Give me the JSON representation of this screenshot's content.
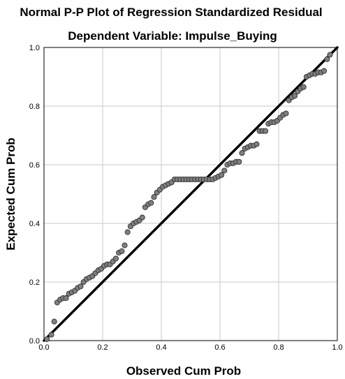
{
  "chart_data": {
    "type": "scatter",
    "title": "Normal P-P Plot of Regression Standardized Residual",
    "subtitle": "Dependent Variable: Impulse_Buying",
    "xlabel": "Observed Cum Prob",
    "ylabel": "Expected Cum Prob",
    "xlim": [
      0,
      1
    ],
    "ylim": [
      0,
      1
    ],
    "xticks": [
      "0.0",
      "0.2",
      "0.4",
      "0.6",
      "0.8",
      "1.0"
    ],
    "yticks": [
      "0.0",
      "0.2",
      "0.4",
      "0.6",
      "0.8",
      "1.0"
    ],
    "grid": true,
    "reference_line": [
      [
        0,
        0
      ],
      [
        1,
        1
      ]
    ],
    "colors": {
      "marker_fill": "#7f7f7f",
      "marker_edge": "#303030",
      "line": "#000000",
      "grid": "#c8c8c8"
    },
    "points": [
      [
        0.01,
        0.005
      ],
      [
        0.025,
        0.02
      ],
      [
        0.035,
        0.065
      ],
      [
        0.045,
        0.13
      ],
      [
        0.055,
        0.14
      ],
      [
        0.065,
        0.145
      ],
      [
        0.075,
        0.145
      ],
      [
        0.085,
        0.16
      ],
      [
        0.095,
        0.165
      ],
      [
        0.105,
        0.17
      ],
      [
        0.115,
        0.18
      ],
      [
        0.125,
        0.185
      ],
      [
        0.135,
        0.2
      ],
      [
        0.145,
        0.21
      ],
      [
        0.155,
        0.215
      ],
      [
        0.165,
        0.22
      ],
      [
        0.175,
        0.23
      ],
      [
        0.185,
        0.24
      ],
      [
        0.195,
        0.245
      ],
      [
        0.205,
        0.255
      ],
      [
        0.215,
        0.26
      ],
      [
        0.225,
        0.26
      ],
      [
        0.235,
        0.27
      ],
      [
        0.245,
        0.28
      ],
      [
        0.255,
        0.3
      ],
      [
        0.265,
        0.305
      ],
      [
        0.275,
        0.325
      ],
      [
        0.285,
        0.37
      ],
      [
        0.295,
        0.39
      ],
      [
        0.305,
        0.4
      ],
      [
        0.315,
        0.405
      ],
      [
        0.325,
        0.41
      ],
      [
        0.335,
        0.42
      ],
      [
        0.345,
        0.455
      ],
      [
        0.355,
        0.465
      ],
      [
        0.365,
        0.47
      ],
      [
        0.375,
        0.49
      ],
      [
        0.385,
        0.505
      ],
      [
        0.395,
        0.515
      ],
      [
        0.405,
        0.525
      ],
      [
        0.415,
        0.53
      ],
      [
        0.425,
        0.535
      ],
      [
        0.435,
        0.54
      ],
      [
        0.445,
        0.55
      ],
      [
        0.455,
        0.55
      ],
      [
        0.465,
        0.55
      ],
      [
        0.475,
        0.55
      ],
      [
        0.485,
        0.55
      ],
      [
        0.495,
        0.55
      ],
      [
        0.505,
        0.55
      ],
      [
        0.515,
        0.55
      ],
      [
        0.525,
        0.55
      ],
      [
        0.535,
        0.55
      ],
      [
        0.545,
        0.55
      ],
      [
        0.555,
        0.55
      ],
      [
        0.565,
        0.55
      ],
      [
        0.575,
        0.55
      ],
      [
        0.585,
        0.555
      ],
      [
        0.595,
        0.56
      ],
      [
        0.605,
        0.565
      ],
      [
        0.615,
        0.58
      ],
      [
        0.625,
        0.6
      ],
      [
        0.635,
        0.605
      ],
      [
        0.645,
        0.605
      ],
      [
        0.655,
        0.61
      ],
      [
        0.665,
        0.61
      ],
      [
        0.675,
        0.64
      ],
      [
        0.685,
        0.655
      ],
      [
        0.695,
        0.66
      ],
      [
        0.705,
        0.665
      ],
      [
        0.715,
        0.665
      ],
      [
        0.725,
        0.67
      ],
      [
        0.735,
        0.715
      ],
      [
        0.745,
        0.715
      ],
      [
        0.755,
        0.715
      ],
      [
        0.765,
        0.74
      ],
      [
        0.775,
        0.745
      ],
      [
        0.785,
        0.745
      ],
      [
        0.795,
        0.75
      ],
      [
        0.805,
        0.76
      ],
      [
        0.815,
        0.77
      ],
      [
        0.825,
        0.775
      ],
      [
        0.835,
        0.82
      ],
      [
        0.845,
        0.83
      ],
      [
        0.855,
        0.835
      ],
      [
        0.865,
        0.85
      ],
      [
        0.875,
        0.86
      ],
      [
        0.885,
        0.865
      ],
      [
        0.895,
        0.9
      ],
      [
        0.905,
        0.905
      ],
      [
        0.915,
        0.91
      ],
      [
        0.925,
        0.91
      ],
      [
        0.935,
        0.915
      ],
      [
        0.945,
        0.915
      ],
      [
        0.955,
        0.92
      ],
      [
        0.965,
        0.96
      ],
      [
        0.975,
        0.975
      ]
    ]
  }
}
